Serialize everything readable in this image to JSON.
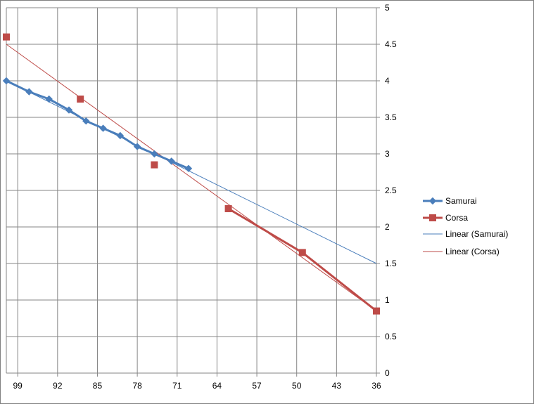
{
  "chart_data": {
    "type": "line",
    "title": "",
    "xlabel": "",
    "ylabel": "",
    "x_reversed": true,
    "xlim": [
      101,
      36
    ],
    "ylim": [
      0,
      5
    ],
    "x_ticks": [
      99,
      92,
      85,
      78,
      71,
      64,
      57,
      50,
      43,
      36
    ],
    "y_ticks": [
      0,
      0.5,
      1,
      1.5,
      2,
      2.5,
      3,
      3.5,
      4,
      4.5,
      5
    ],
    "y_tick_labels": [
      "0",
      "0.5",
      "1",
      "1.5",
      "2",
      "2.5",
      "3",
      "3.5",
      "4",
      "4.5",
      "5"
    ],
    "grid": true,
    "legend_position": "right",
    "series": [
      {
        "name": "Samurai",
        "color": "#4a7ebb",
        "marker": "diamond",
        "points": [
          [
            101,
            4.0
          ],
          [
            97,
            3.85
          ],
          [
            93.5,
            3.75
          ],
          [
            90,
            3.6
          ],
          [
            87,
            3.45
          ],
          [
            84,
            3.35
          ],
          [
            81,
            3.25
          ],
          [
            78,
            3.1
          ],
          [
            75,
            3.0
          ],
          [
            72,
            2.9
          ],
          [
            69,
            2.8
          ]
        ]
      },
      {
        "name": "Corsa",
        "color": "#be4b48",
        "marker": "square",
        "points": [
          [
            101,
            4.6
          ],
          [
            88,
            3.75
          ],
          [
            75,
            2.85
          ],
          [
            62,
            2.25
          ],
          [
            49,
            1.65
          ],
          [
            36,
            0.85
          ]
        ],
        "line_segments_from_index": 3
      }
    ],
    "trendlines": [
      {
        "name": "Linear (Samurai)",
        "color": "#4a7ebb",
        "from": [
          101,
          4.0
        ],
        "to": [
          36,
          1.5
        ]
      },
      {
        "name": "Linear (Corsa)",
        "color": "#be4b48",
        "from": [
          101,
          4.5
        ],
        "to": [
          36,
          0.85
        ]
      }
    ]
  }
}
